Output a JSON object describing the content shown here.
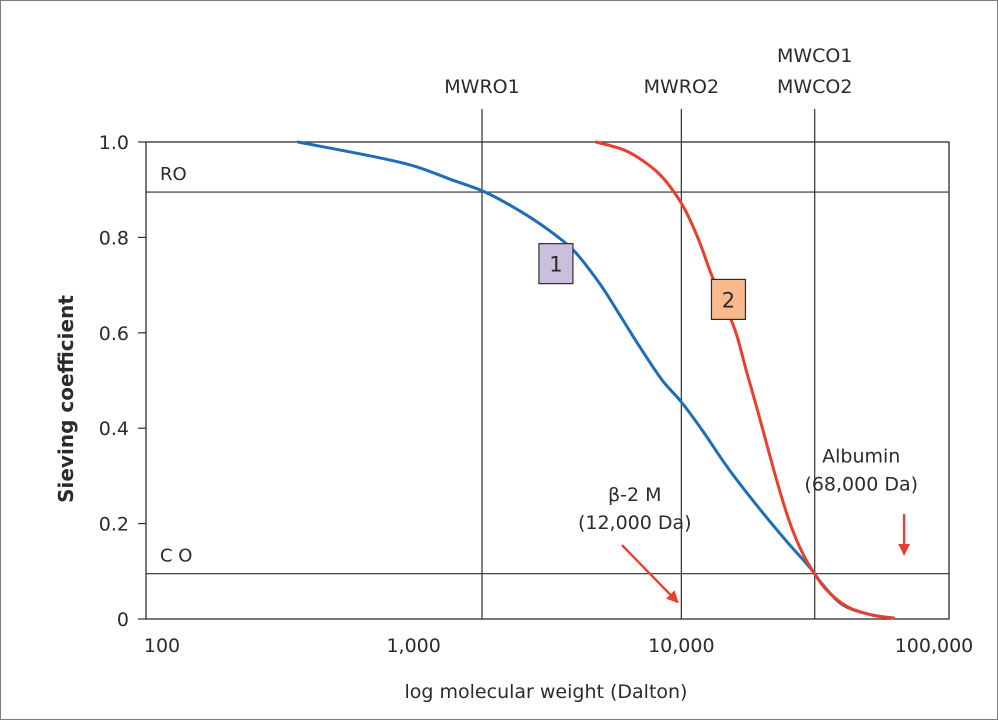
{
  "chart_data": {
    "type": "line",
    "xscale": "log",
    "xlim": [
      100,
      100000
    ],
    "ylim": [
      0,
      1.0
    ],
    "xlabel": "log molecular weight (Dalton)",
    "ylabel": "Sieving coefficient",
    "x_ticks": [
      100,
      1000,
      10000,
      100000
    ],
    "x_tick_labels": [
      "100",
      "1,000",
      "10,000",
      "100,000"
    ],
    "y_ticks": [
      0,
      0.2,
      0.4,
      0.6,
      0.8,
      1.0
    ],
    "y_tick_labels": [
      "0",
      "0.2",
      "0.4",
      "0.6",
      "0.8",
      "1.0"
    ],
    "grid": false,
    "series": [
      {
        "name": "1",
        "color": "#1f6eb5",
        "points": [
          [
            370,
            1.0
          ],
          [
            700,
            0.97
          ],
          [
            1000,
            0.95
          ],
          [
            1400,
            0.92
          ],
          [
            1850,
            0.895
          ],
          [
            2500,
            0.855
          ],
          [
            3200,
            0.815
          ],
          [
            4000,
            0.77
          ],
          [
            5000,
            0.7
          ],
          [
            6000,
            0.63
          ],
          [
            7000,
            0.57
          ],
          [
            8500,
            0.5
          ],
          [
            10000,
            0.455
          ],
          [
            12000,
            0.395
          ],
          [
            15000,
            0.315
          ],
          [
            20000,
            0.225
          ],
          [
            25000,
            0.16
          ],
          [
            30000,
            0.11
          ],
          [
            34000,
            0.07
          ],
          [
            40000,
            0.03
          ],
          [
            50000,
            0.01
          ],
          [
            62000,
            0.002
          ]
        ]
      },
      {
        "name": "2",
        "color": "#e8402c",
        "points": [
          [
            4800,
            1.0
          ],
          [
            6000,
            0.985
          ],
          [
            7000,
            0.965
          ],
          [
            8200,
            0.935
          ],
          [
            9400,
            0.895
          ],
          [
            10500,
            0.85
          ],
          [
            11700,
            0.79
          ],
          [
            13000,
            0.72
          ],
          [
            14500,
            0.66
          ],
          [
            16000,
            0.6
          ],
          [
            17500,
            0.52
          ],
          [
            19000,
            0.45
          ],
          [
            21000,
            0.36
          ],
          [
            23000,
            0.28
          ],
          [
            25500,
            0.2
          ],
          [
            28000,
            0.145
          ],
          [
            31000,
            0.1
          ],
          [
            35000,
            0.06
          ],
          [
            42000,
            0.025
          ],
          [
            52000,
            0.008
          ],
          [
            62000,
            0.002
          ]
        ]
      }
    ],
    "vlines": [
      {
        "x": 1800,
        "labels": [
          "MWRO1"
        ]
      },
      {
        "x": 10000,
        "labels": [
          "MWRO2"
        ]
      },
      {
        "x": 31500,
        "labels": [
          "MWCO1",
          "MWCO2"
        ]
      }
    ],
    "hlines": [
      {
        "y": 0.895,
        "label": "RO"
      },
      {
        "y": 0.095,
        "label": "C O"
      }
    ],
    "series_labels": [
      {
        "text": "1",
        "x": 3400,
        "y": 0.745,
        "fill": "#c8c0dc"
      },
      {
        "text": "2",
        "x": 15000,
        "y": 0.67,
        "fill": "#f9b98c"
      }
    ],
    "annotations": [
      {
        "lines": [
          "β-2 M",
          "(12,000 Da)"
        ],
        "x": 6700,
        "y": 0.235,
        "arrow_from": [
          6000,
          0.155
        ],
        "arrow_to": [
          9700,
          0.035
        ],
        "arrow_color": "#e8402c"
      },
      {
        "lines": [
          "Albumin",
          "(68,000 Da)"
        ],
        "x": 47000,
        "y": 0.315,
        "arrow_from": [
          68000,
          0.22
        ],
        "arrow_to": [
          68000,
          0.135
        ],
        "arrow_color": "#e8402c"
      }
    ]
  }
}
